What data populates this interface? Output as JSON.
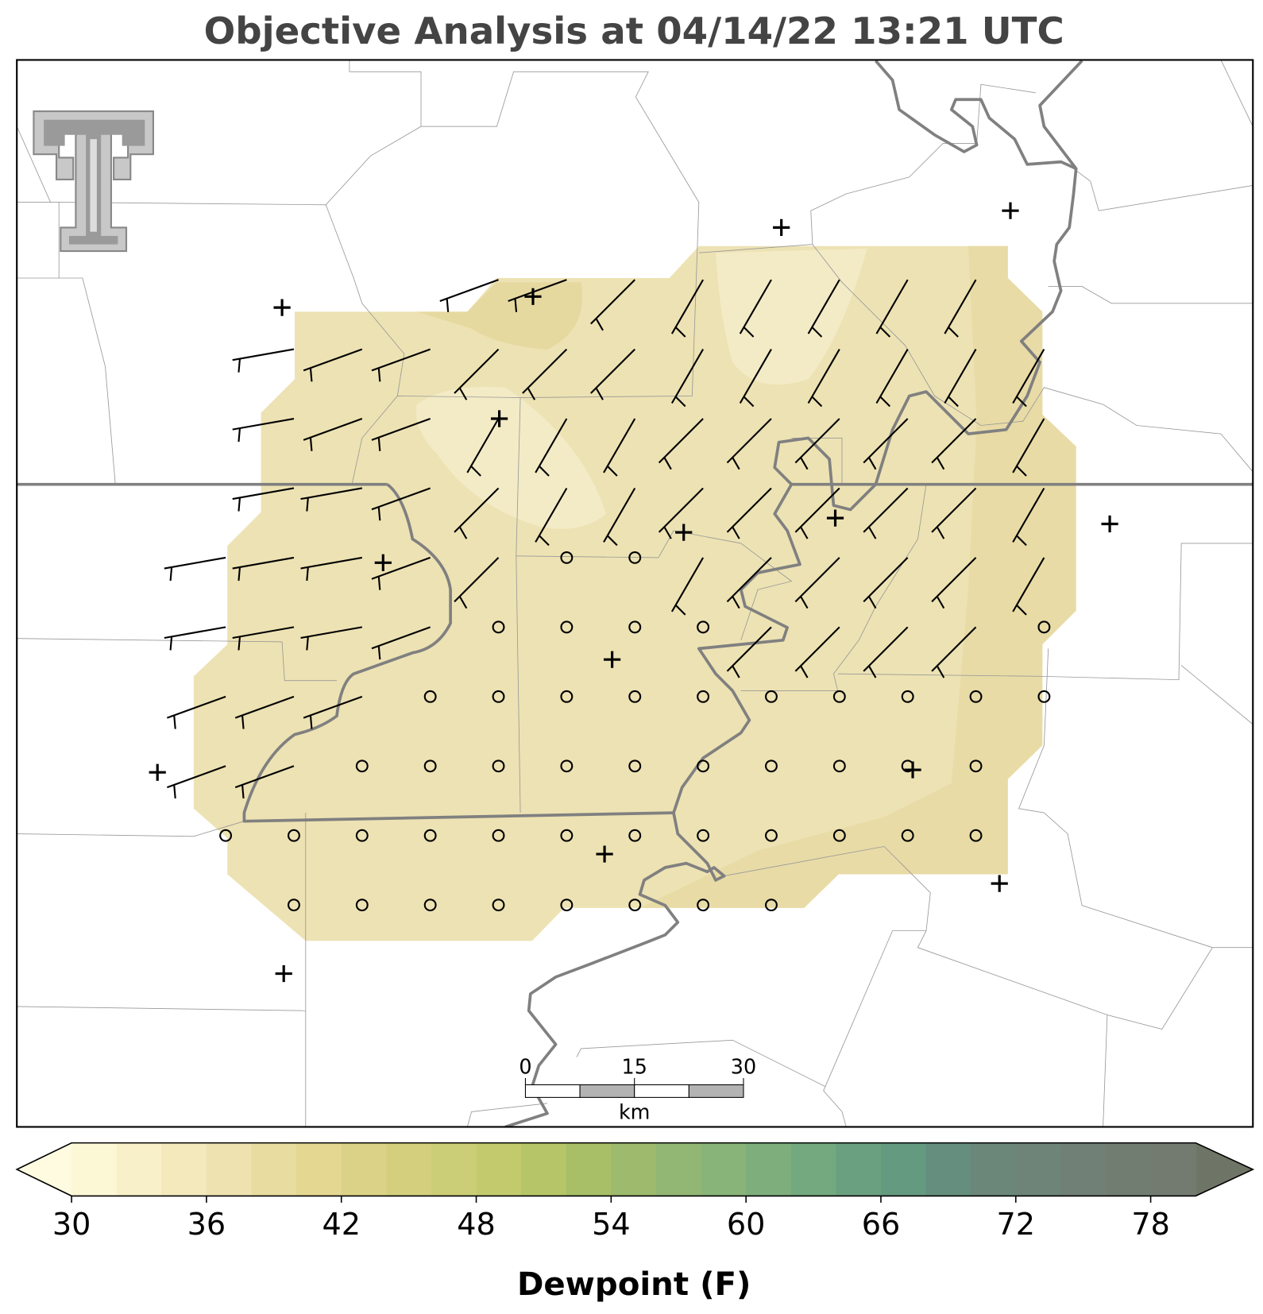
{
  "title": "Objective Analysis at 04/14/22 13:21 UTC",
  "colorbar": {
    "label": "Dewpoint (F)",
    "levels": [
      30,
      32,
      34,
      36,
      38,
      40,
      42,
      44,
      46,
      48,
      50,
      52,
      54,
      56,
      58,
      60,
      62,
      64,
      66,
      68,
      70,
      72,
      74,
      76,
      78,
      80
    ],
    "colors": [
      "#fcf7d5",
      "#f8f0c8",
      "#f3e9bd",
      "#eee2b0",
      "#e8dca0",
      "#e3d792",
      "#dcd287",
      "#d3cf7d",
      "#cccd77",
      "#c2ca6d",
      "#b6c567",
      "#a8bf67",
      "#9eba6c",
      "#92b673",
      "#88b47a",
      "#7eae7c",
      "#74a87e",
      "#6aa07f",
      "#649a80",
      "#658e7e",
      "#6a877a",
      "#6e8478",
      "#718076",
      "#727d72",
      "#737b70"
    ],
    "under_color": "#fffbe0",
    "over_color": "#6f7566",
    "ticks": [
      30,
      36,
      42,
      48,
      54,
      60,
      66,
      72,
      78
    ]
  },
  "scale_bar": {
    "ticks": [
      0,
      15,
      30
    ],
    "unit": "km"
  }
}
